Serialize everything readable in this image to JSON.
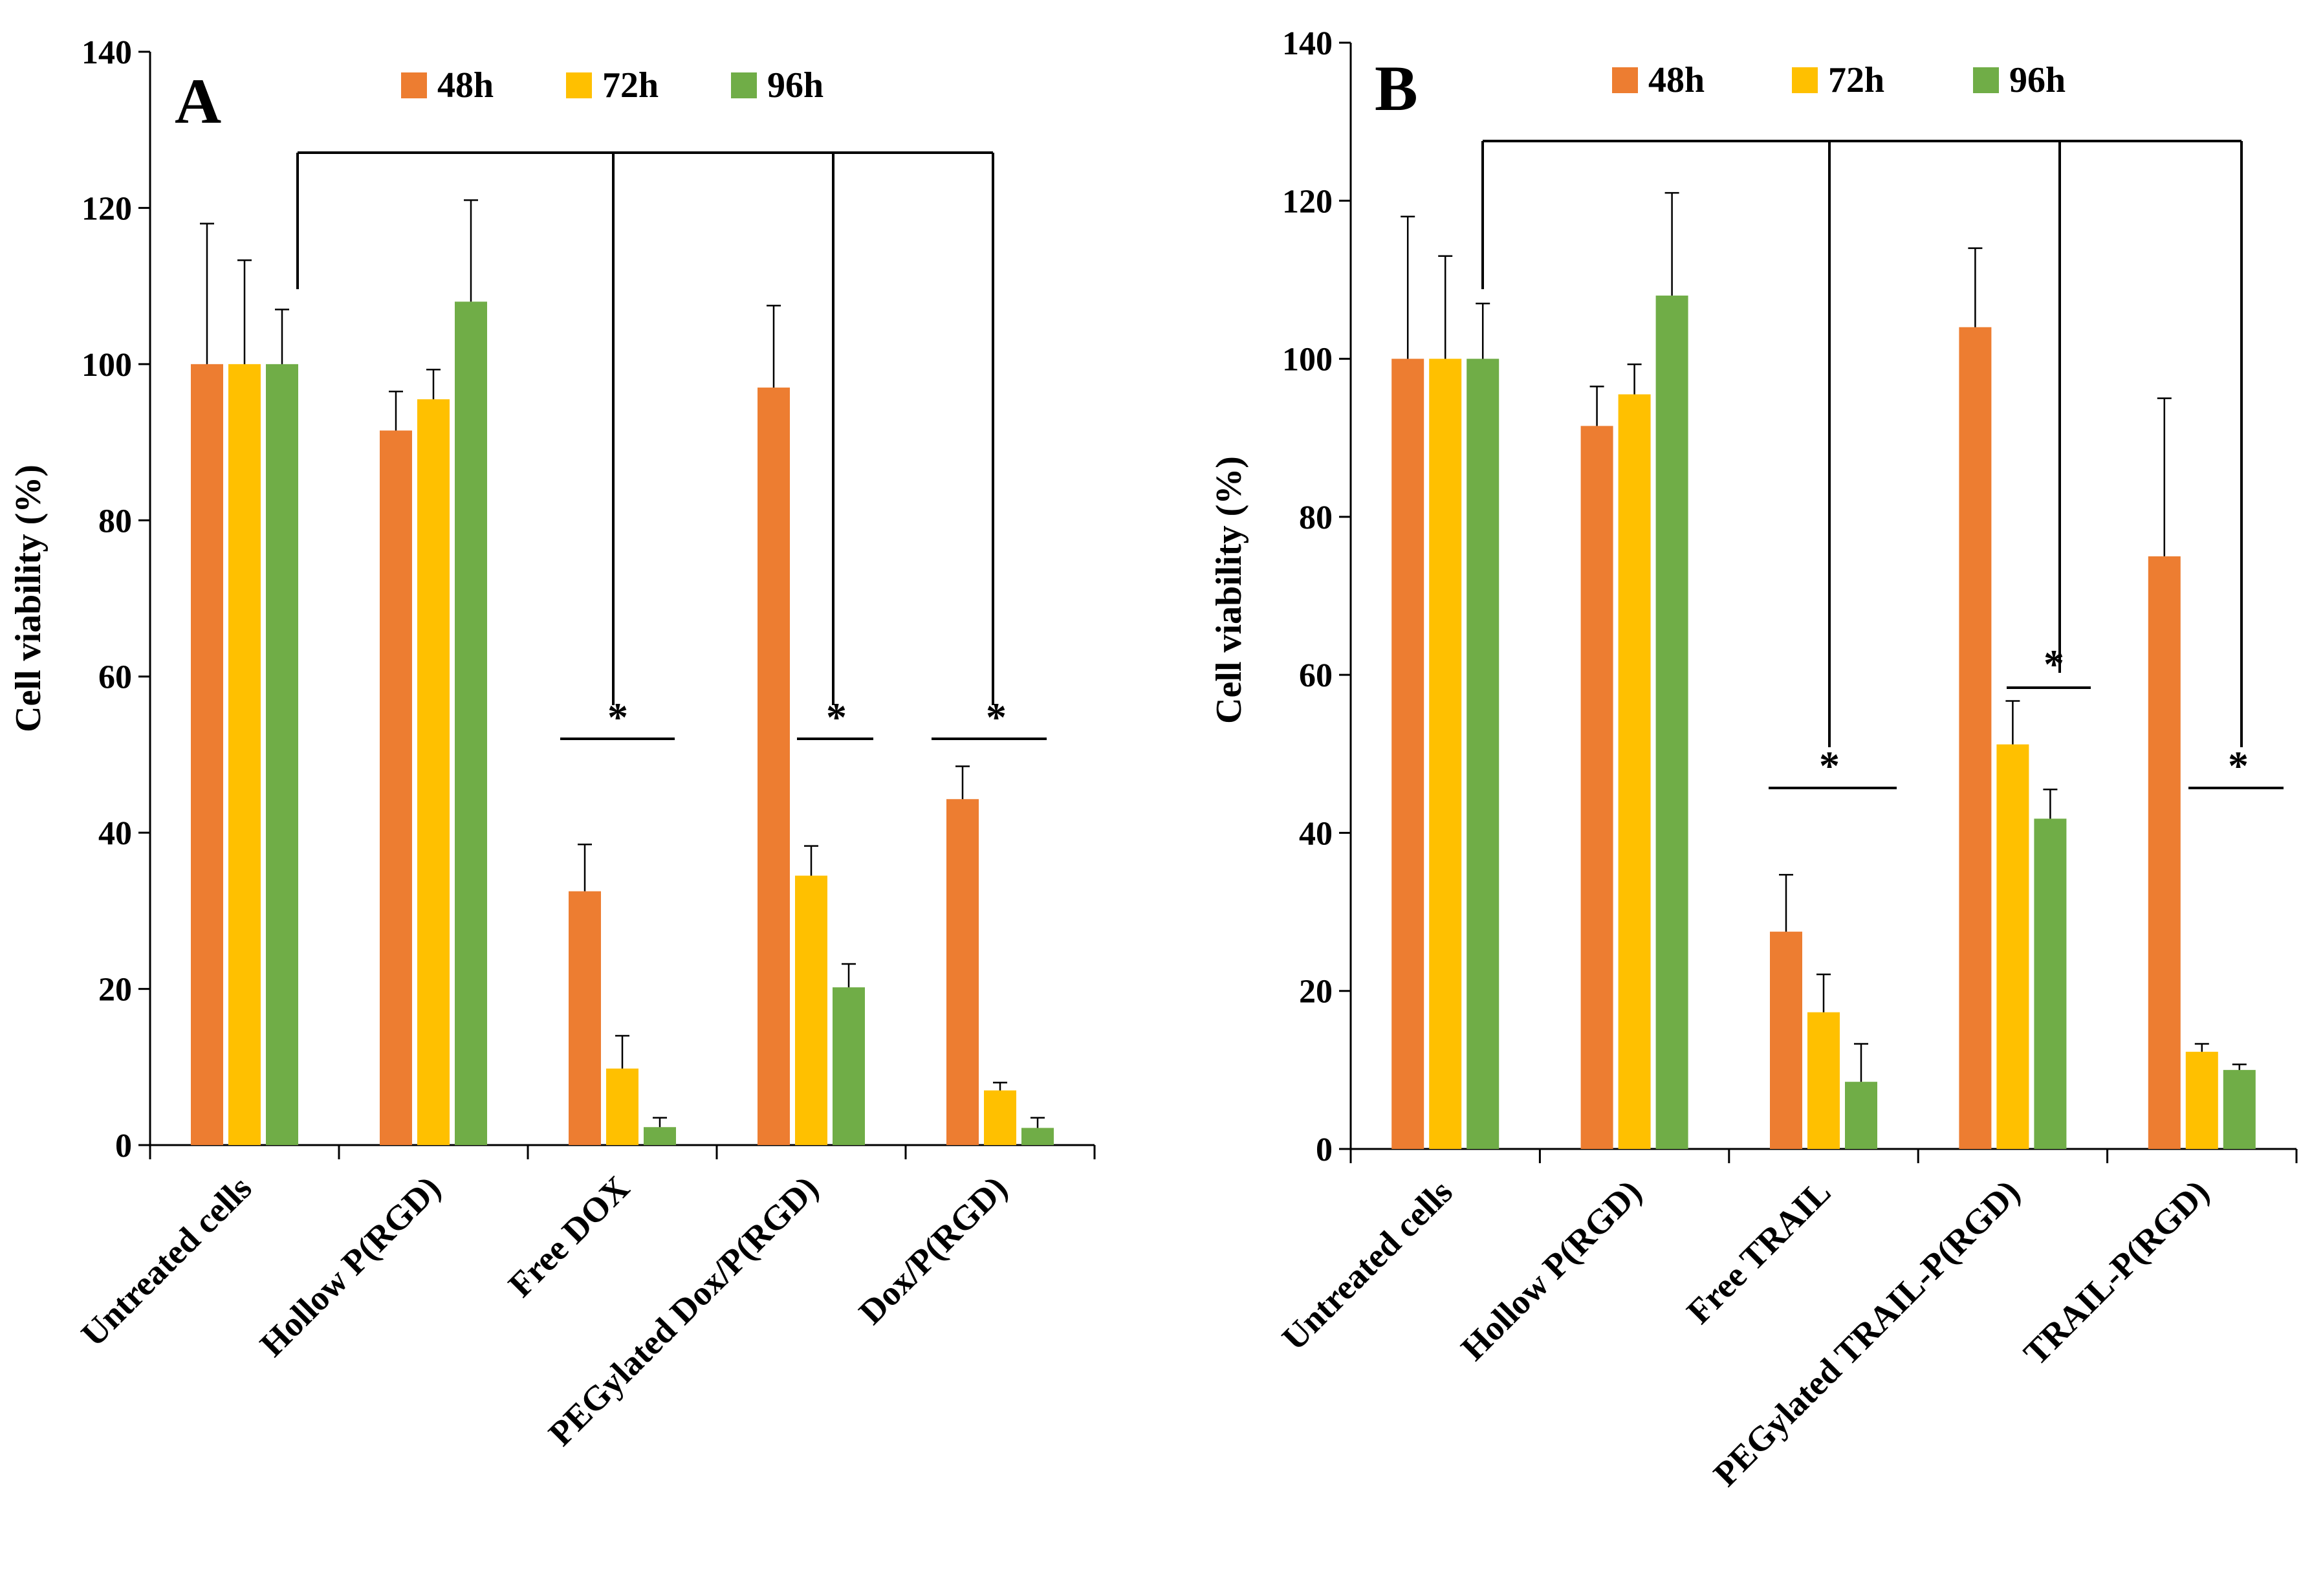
{
  "colors": {
    "48h": "#ED7D31",
    "72h": "#FFC000",
    "96h": "#70AD47"
  },
  "chart_data": [
    {
      "type": "bar",
      "panel_label": "A",
      "ylabel": "Cell viability (%)",
      "ylim": [
        0,
        140
      ],
      "yticks": [
        0,
        20,
        40,
        60,
        80,
        100,
        120,
        140
      ],
      "legend_position": "top",
      "categories": [
        "Untreated cells",
        "Hollow P(RGD)",
        "Free DOX",
        "PEGylated Dox/P(RGD)",
        "Dox/P(RGD)"
      ],
      "series": [
        {
          "name": "48h",
          "values": [
            100,
            91.5,
            32.5,
            97,
            44.3
          ],
          "errors": [
            18,
            5,
            6,
            10.5,
            4.2
          ]
        },
        {
          "name": "72h",
          "values": [
            100,
            95.5,
            9.8,
            34.5,
            7
          ],
          "errors": [
            13.3,
            3.8,
            4.2,
            3.8,
            1
          ]
        },
        {
          "name": "96h",
          "values": [
            100,
            108,
            2.3,
            20.2,
            2.2
          ],
          "errors": [
            7,
            13,
            1.2,
            3,
            1.3
          ]
        }
      ],
      "significance": {
        "marker": "*",
        "reference": "Untreated cells",
        "compared": [
          "Free DOX",
          "PEGylated Dox/P(RGD)",
          "Dox/P(RGD)"
        ]
      }
    },
    {
      "type": "bar",
      "panel_label": "B",
      "ylabel": "Cell viability (%)",
      "ylim": [
        0,
        140
      ],
      "yticks": [
        0,
        20,
        40,
        60,
        80,
        100,
        120,
        140
      ],
      "legend_position": "top",
      "categories": [
        "Untreated cells",
        "Hollow P(RGD)",
        "Free TRAIL",
        "PEGylated TRAIL-P(RGD)",
        "TRAIL-P(RGD)"
      ],
      "series": [
        {
          "name": "48h",
          "values": [
            100,
            91.5,
            27.5,
            104,
            75
          ],
          "errors": [
            18,
            5,
            7.2,
            10,
            20
          ]
        },
        {
          "name": "72h",
          "values": [
            100,
            95.5,
            17.3,
            51.2,
            12.3
          ],
          "errors": [
            13,
            3.8,
            4.8,
            5.5,
            1
          ]
        },
        {
          "name": "96h",
          "values": [
            100,
            108,
            8.5,
            41.8,
            10
          ],
          "errors": [
            7,
            13,
            4.8,
            3.7,
            0.7
          ]
        }
      ],
      "significance": {
        "marker": "*",
        "reference": "Untreated cells",
        "compared": [
          "Free TRAIL",
          "PEGylated TRAIL-P(RGD)",
          "TRAIL-P(RGD)"
        ]
      }
    }
  ]
}
